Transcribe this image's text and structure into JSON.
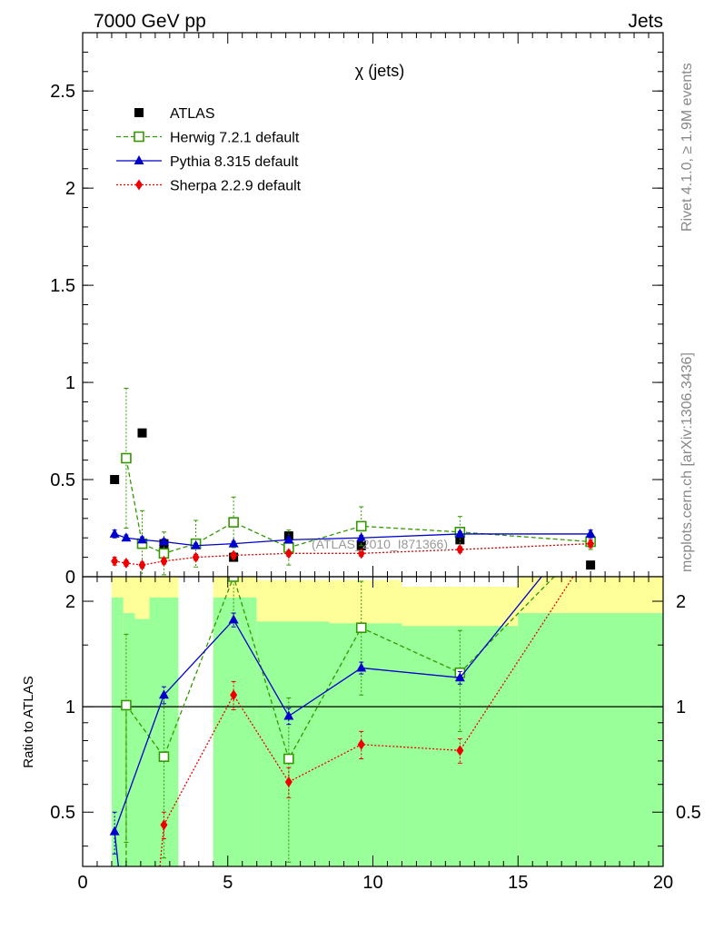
{
  "header": {
    "left": "7000 GeV pp",
    "right": "Jets"
  },
  "side_text": {
    "top": "Rivet 4.1.0, ≥ 1.9M events",
    "bottom": "mcplots.cern.ch [arXiv:1306.3436]"
  },
  "chart_data": {
    "type": "scatter",
    "title": "χ (jets)",
    "watermark": "(ATLAS_2010_I871366)",
    "xlim": [
      0,
      20
    ],
    "ylim": [
      0,
      2.8
    ],
    "xticks": [
      "0",
      "5",
      "10",
      "15",
      "20"
    ],
    "yticks": [
      "0",
      "0.5",
      "1",
      "1.5",
      "2",
      "2.5"
    ],
    "x": [
      1.1,
      1.5,
      2.05,
      2.8,
      3.9,
      5.2,
      7.1,
      9.6,
      13.0,
      17.5
    ],
    "series": [
      {
        "name": "ATLAS",
        "color": "#000000",
        "marker": "square-filled",
        "values": [
          0.5,
          0.61,
          0.74,
          0.17,
          null,
          0.1,
          0.21,
          0.16,
          0.19,
          0.06
        ]
      },
      {
        "name": "Herwig 7.2.1 default",
        "color": "#339900",
        "marker": "square-open",
        "line": "dashed",
        "values": [
          null,
          0.61,
          0.17,
          0.12,
          0.17,
          0.28,
          0.15,
          0.26,
          0.23,
          0.18
        ],
        "errors": [
          null,
          0.36,
          0.17,
          0.11,
          0.12,
          0.13,
          0.09,
          0.1,
          0.08,
          0.04
        ]
      },
      {
        "name": "Pythia 8.315 default",
        "color": "#0000cc",
        "marker": "triangle",
        "line": "solid",
        "values": [
          0.22,
          0.2,
          0.19,
          0.18,
          0.16,
          0.17,
          0.19,
          0.2,
          0.22,
          0.22
        ],
        "errors": [
          0.02,
          0.015,
          0.015,
          0.015,
          0.012,
          0.012,
          0.012,
          0.012,
          0.012,
          0.02
        ]
      },
      {
        "name": "Sherpa 2.2.9 default",
        "color": "#ee0000",
        "marker": "diamond",
        "line": "dotted",
        "values": [
          0.08,
          0.07,
          0.06,
          0.08,
          0.1,
          0.11,
          0.12,
          0.12,
          0.14,
          0.17
        ],
        "errors": [
          0.02,
          0.015,
          0.015,
          0.015,
          0.015,
          0.015,
          0.015,
          0.015,
          0.015,
          0.02
        ]
      }
    ],
    "ratio": {
      "ylabel": "Ratio to ATLAS",
      "ylim": [
        0.35,
        2.35
      ],
      "yticks": [
        "0.5",
        "1",
        "2"
      ],
      "bands": [
        {
          "x0": 1.0,
          "x1": 1.4,
          "green": [
            0.35,
            2.05
          ],
          "yellow": [
            0.35,
            2.35
          ]
        },
        {
          "x0": 1.4,
          "x1": 1.8,
          "green": [
            0.35,
            1.85
          ],
          "yellow": [
            0.35,
            2.35
          ]
        },
        {
          "x0": 1.8,
          "x1": 2.3,
          "green": [
            0.35,
            1.78
          ],
          "yellow": [
            0.35,
            2.35
          ]
        },
        {
          "x0": 2.3,
          "x1": 3.3,
          "green": [
            0.35,
            2.05
          ],
          "yellow": [
            0.35,
            2.35
          ]
        },
        {
          "x0": 4.5,
          "x1": 6.0,
          "green": [
            0.35,
            2.05
          ],
          "yellow": [
            0.35,
            2.35
          ]
        },
        {
          "x0": 6.0,
          "x1": 8.5,
          "green": [
            0.35,
            1.75
          ],
          "yellow": [
            0.35,
            2.3
          ]
        },
        {
          "x0": 8.5,
          "x1": 11.0,
          "green": [
            0.35,
            1.73
          ],
          "yellow": [
            0.35,
            2.3
          ]
        },
        {
          "x0": 11.0,
          "x1": 15.0,
          "green": [
            0.35,
            1.7
          ],
          "yellow": [
            0.35,
            2.2
          ]
        },
        {
          "x0": 15.0,
          "x1": 20.0,
          "green": [
            0.35,
            1.85
          ],
          "yellow": [
            0.35,
            2.35
          ]
        }
      ],
      "series": [
        {
          "name": "Herwig 7.2.1 default",
          "x": [
            1.5,
            2.8,
            5.2,
            7.1,
            9.6,
            13.0,
            17.5
          ],
          "values": [
            1.01,
            0.72,
            2.35,
            0.71,
            1.68,
            1.25,
            3.0
          ],
          "errors": [
            0.6,
            0.35,
            0.5,
            0.35,
            0.6,
            0.4,
            0.5
          ]
        },
        {
          "name": "Pythia 8.315 default",
          "x": [
            1.1,
            2.8,
            5.2,
            7.1,
            9.6,
            13.0,
            17.5
          ],
          "values": [
            0.44,
            1.08,
            1.77,
            0.94,
            1.29,
            1.21,
            3.5
          ],
          "errors": [
            0.06,
            0.06,
            0.08,
            0.05,
            0.05,
            0.05,
            0.1
          ]
        },
        {
          "name": "Sherpa 2.2.9 default",
          "x": [
            2.8,
            5.2,
            7.1,
            9.6,
            13.0,
            17.5
          ],
          "values": [
            0.46,
            1.08,
            0.61,
            0.78,
            0.75,
            2.8
          ],
          "errors": [
            0.04,
            0.1,
            0.06,
            0.07,
            0.06,
            0.1
          ]
        }
      ]
    }
  }
}
